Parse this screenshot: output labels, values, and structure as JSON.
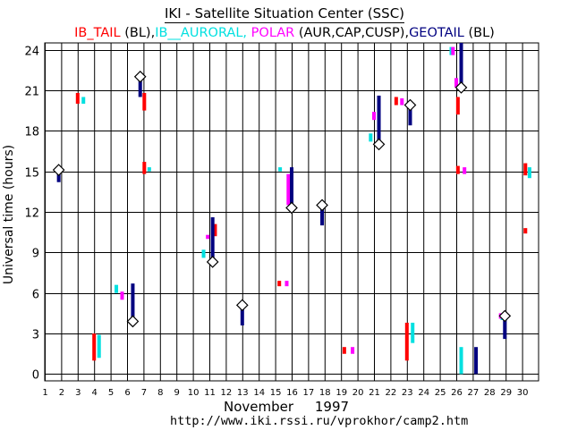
{
  "chart_data": {
    "type": "scatter",
    "title": "IKI - Satellite Situation Center (SSC)",
    "legend": [
      {
        "name": "IB_TAIL",
        "note": "(BL),",
        "color": "#ff0000"
      },
      {
        "name": "IB__AURORAL,",
        "note": "",
        "color": "#00e0e0"
      },
      {
        "name": "POLAR",
        "note": "(AUR,CAP,CUSP),",
        "color": "#ff00ff"
      },
      {
        "name": "GEOTAIL",
        "note": "(BL)",
        "color": "#000080"
      }
    ],
    "xlabel": "November     1997",
    "ylabel": "Universal time (hours)",
    "footer_url": "http://www.iki.rssi.ru/vprokhor/camp2.htm",
    "x_ticks": [
      1,
      2,
      3,
      4,
      5,
      6,
      7,
      8,
      9,
      10,
      11,
      12,
      13,
      14,
      15,
      16,
      17,
      18,
      19,
      20,
      21,
      22,
      23,
      24,
      25,
      26,
      27,
      28,
      29,
      30
    ],
    "y_ticks": [
      0,
      3,
      6,
      9,
      12,
      15,
      18,
      21,
      24
    ],
    "xlim": [
      1,
      31
    ],
    "ylim": [
      -0.5,
      24.5
    ],
    "grid": true,
    "series": [
      {
        "name": "IB_TAIL",
        "color": "#ff0000",
        "segments": [
          [
            4.0,
            1.0,
            3.0
          ],
          [
            7.05,
            19.5,
            20.8
          ],
          [
            7.05,
            14.8,
            15.7
          ],
          [
            3.0,
            20.0,
            20.8
          ],
          [
            11.35,
            10.2,
            11.1
          ],
          [
            15.25,
            6.5,
            6.9
          ],
          [
            19.2,
            1.5,
            2.0
          ],
          [
            22.35,
            19.9,
            20.5
          ],
          [
            23.0,
            1.0,
            3.8
          ],
          [
            26.1,
            19.2,
            20.5
          ],
          [
            26.1,
            14.8,
            15.4
          ],
          [
            30.2,
            14.7,
            15.6
          ],
          [
            30.2,
            10.4,
            10.8
          ]
        ]
      },
      {
        "name": "IB__AURORAL",
        "color": "#00e0e0",
        "segments": [
          [
            4.3,
            1.2,
            2.9
          ],
          [
            5.35,
            6.0,
            6.6
          ],
          [
            7.35,
            15.0,
            15.3
          ],
          [
            3.35,
            20.0,
            20.5
          ],
          [
            10.65,
            8.6,
            9.2
          ],
          [
            15.3,
            15.0,
            15.3
          ],
          [
            20.8,
            17.2,
            17.8
          ],
          [
            23.35,
            2.3,
            3.8
          ],
          [
            25.7,
            23.6,
            24.2
          ],
          [
            26.3,
            0.0,
            2.0
          ],
          [
            28.8,
            4.0,
            4.4
          ],
          [
            30.45,
            14.5,
            15.3
          ]
        ]
      },
      {
        "name": "POLAR",
        "color": "#ff00ff",
        "segments": [
          [
            5.7,
            5.5,
            6.1
          ],
          [
            10.9,
            10.0,
            10.3
          ],
          [
            15.7,
            6.5,
            6.9
          ],
          [
            15.8,
            12.5,
            14.8
          ],
          [
            19.7,
            1.5,
            2.0
          ],
          [
            21.0,
            18.8,
            19.4
          ],
          [
            22.7,
            19.9,
            20.4
          ],
          [
            26.0,
            21.2,
            21.9
          ],
          [
            26.5,
            14.8,
            15.3
          ],
          [
            28.7,
            4.1,
            4.5
          ],
          [
            25.8,
            23.6,
            24.2
          ]
        ]
      },
      {
        "name": "GEOTAIL",
        "color": "#000080",
        "segments": [
          [
            1.85,
            14.2,
            15.3
          ],
          [
            6.35,
            3.9,
            6.7
          ],
          [
            6.8,
            20.5,
            22.0
          ],
          [
            11.2,
            8.3,
            11.6
          ],
          [
            13.0,
            3.6,
            5.1
          ],
          [
            16.0,
            12.3,
            15.3
          ],
          [
            17.85,
            11.0,
            12.5
          ],
          [
            21.3,
            17.0,
            20.6
          ],
          [
            23.2,
            18.4,
            19.9
          ],
          [
            26.3,
            21.2,
            24.5
          ],
          [
            27.2,
            0.0,
            2.0
          ],
          [
            28.95,
            2.6,
            4.3
          ]
        ]
      }
    ],
    "diamond_markers": [
      {
        "series": "GEOTAIL",
        "x": 1.85,
        "y": 15.1
      },
      {
        "series": "GEOTAIL",
        "x": 6.35,
        "y": 3.9
      },
      {
        "series": "GEOTAIL",
        "x": 6.8,
        "y": 22.0
      },
      {
        "series": "GEOTAIL",
        "x": 11.2,
        "y": 8.3
      },
      {
        "series": "GEOTAIL",
        "x": 13.0,
        "y": 5.1
      },
      {
        "series": "GEOTAIL",
        "x": 16.0,
        "y": 12.3
      },
      {
        "series": "GEOTAIL",
        "x": 17.85,
        "y": 12.5
      },
      {
        "series": "GEOTAIL",
        "x": 21.3,
        "y": 17.0
      },
      {
        "series": "GEOTAIL",
        "x": 23.2,
        "y": 19.9
      },
      {
        "series": "GEOTAIL",
        "x": 26.3,
        "y": 21.2
      },
      {
        "series": "GEOTAIL",
        "x": 28.95,
        "y": 4.3
      }
    ]
  }
}
